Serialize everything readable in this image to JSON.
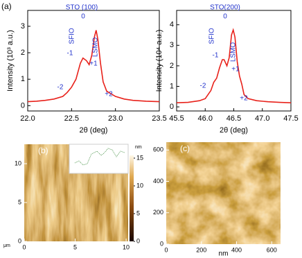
{
  "chart_data": [
    {
      "type": "line",
      "panel": "(a)",
      "xlabel": "2θ (deg)",
      "ylabel": "Intensity (10³ a.u.)",
      "xlim": [
        22.0,
        23.5
      ],
      "ylim": [
        -0.2,
        3.6
      ],
      "xticks": [
        {
          "value": 22,
          "label": "22.0"
        },
        {
          "value": 22.5,
          "label": "22.5"
        },
        {
          "value": 23,
          "label": "23.0"
        },
        {
          "value": 23.5,
          "label": "23.5"
        }
      ],
      "yticks": [
        0,
        1,
        2,
        3
      ],
      "annotations": [
        "STO (100)",
        "0",
        "SFIO",
        "-1",
        "LSMO",
        "+1",
        "-2",
        "+2"
      ],
      "x": [
        22.0,
        22.1,
        22.2,
        22.3,
        22.4,
        22.45,
        22.5,
        22.55,
        22.6,
        22.63,
        22.67,
        22.7,
        22.73,
        22.76,
        22.78,
        22.8,
        22.83,
        22.86,
        22.9,
        23.0,
        23.1,
        23.2,
        23.35,
        23.5
      ],
      "series": [
        {
          "color": "#e8211a",
          "values": [
            0.15,
            0.17,
            0.2,
            0.25,
            0.35,
            0.5,
            0.7,
            1.0,
            1.6,
            1.8,
            1.7,
            1.55,
            1.9,
            2.6,
            2.85,
            2.5,
            1.6,
            0.9,
            0.55,
            0.35,
            0.25,
            0.2,
            0.17,
            0.15
          ]
        }
      ]
    },
    {
      "type": "line",
      "xlabel": "2θ (deg)",
      "ylabel": "Intensity (10⁴ a.u.)",
      "xlim": [
        45.5,
        47.5
      ],
      "ylim": [
        -0.2,
        4.7
      ],
      "xticks": [
        45.5,
        {
          "value": 46,
          "label": "46.0"
        },
        46.5,
        {
          "value": 47,
          "label": "47.0"
        },
        47.5
      ],
      "yticks": [
        0,
        1,
        2,
        3,
        4
      ],
      "annotations": [
        "STO(200)",
        "0",
        "SFIO",
        "-1",
        "LSMO",
        "+1",
        "-2",
        "+2"
      ],
      "x": [
        45.5,
        45.7,
        45.9,
        46.0,
        46.1,
        46.15,
        46.2,
        46.25,
        46.3,
        46.33,
        46.38,
        46.42,
        46.46,
        46.49,
        46.52,
        46.56,
        46.6,
        46.64,
        46.68,
        46.75,
        46.9,
        47.1,
        47.3,
        47.5
      ],
      "series": [
        {
          "color": "#e8211a",
          "values": [
            0.2,
            0.22,
            0.3,
            0.4,
            0.8,
            1.2,
            1.4,
            1.9,
            2.3,
            2.3,
            2.0,
            2.4,
            3.5,
            3.75,
            3.4,
            2.2,
            1.5,
            1.1,
            0.6,
            0.4,
            0.3,
            0.25,
            0.22,
            0.2
          ]
        }
      ]
    },
    {
      "type": "image",
      "panel": "(b)",
      "xlabel": "μm",
      "xlim": [
        0,
        10.2
      ],
      "ylim": [
        0,
        12.5
      ],
      "xticks": [
        0,
        5,
        10
      ],
      "yticks": [
        0,
        5,
        10
      ],
      "colorbar": {
        "label": "nm",
        "lim": [
          0,
          15.5
        ],
        "ticks": [
          0,
          5,
          10,
          15
        ]
      }
    },
    {
      "type": "image",
      "panel": "(c)",
      "xlabel": "nm",
      "xlim": [
        0,
        650
      ],
      "ylim": [
        0,
        650
      ],
      "xticks": [
        0,
        200,
        400,
        600
      ],
      "yticks": [
        0,
        200,
        400,
        600
      ]
    }
  ]
}
